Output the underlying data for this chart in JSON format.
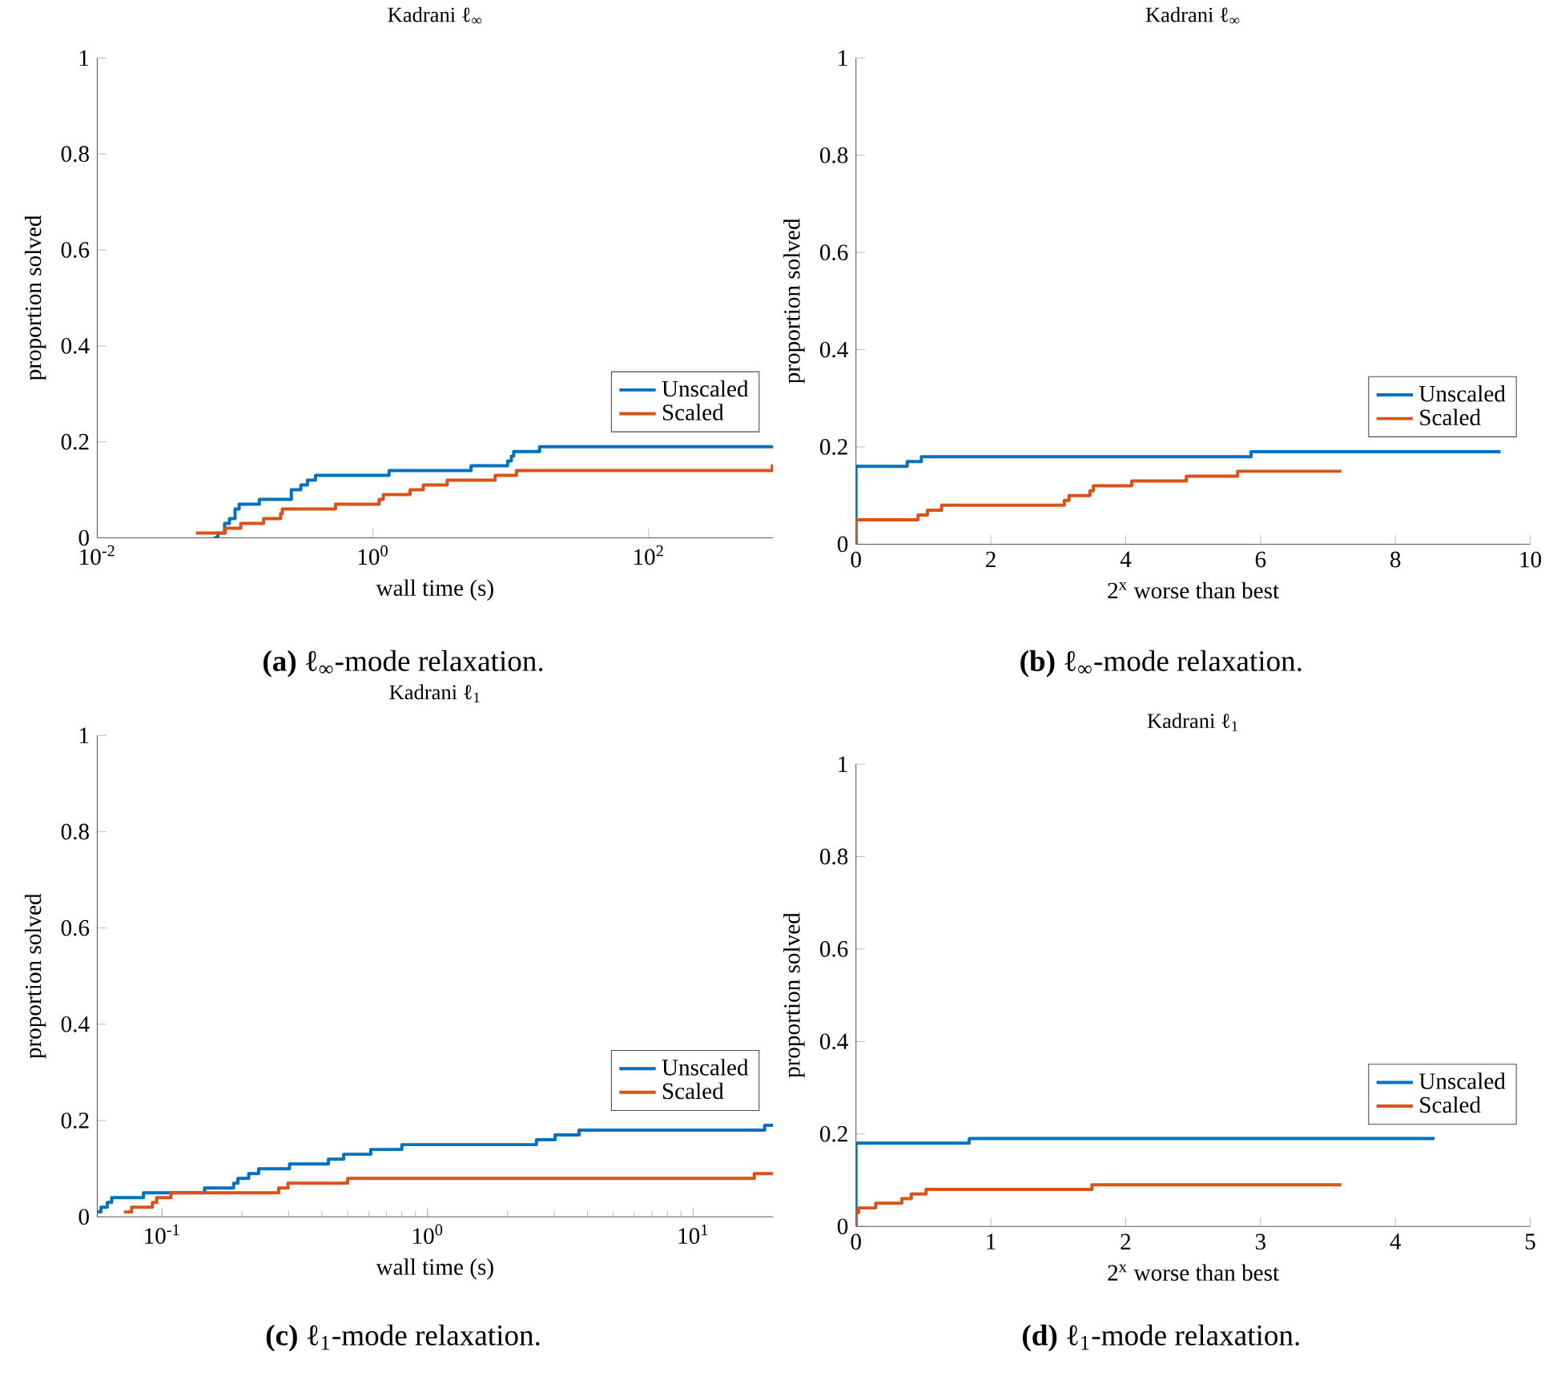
{
  "chart_data": [
    {
      "type": "step",
      "title": "Kadrani ℓ$_{∞}$",
      "xlabel": "wall time (s)",
      "ylabel": "proportion solved",
      "log": "x",
      "legend": "bottom right",
      "xlim": [
        0.01,
        800
      ],
      "ylim": [
        0,
        1
      ],
      "xticks": [
        {
          "value": 0.01,
          "label": "10$^{-2}$"
        },
        {
          "value": 1,
          "label": "10$^{0}$"
        },
        {
          "value": 100,
          "label": "10$^{2}$"
        }
      ],
      "yticks": [
        0,
        0.2,
        0.4,
        0.6,
        0.8,
        1
      ],
      "annotations": [
        "**(a)** ℓ$_{∞}$-mode relaxation."
      ],
      "series": [
        {
          "name": "Unscaled",
          "color": "#0072bd",
          "x": [
            0.07,
            0.075,
            0.084,
            0.091,
            0.1,
            0.107,
            0.15,
            0.256,
            0.3,
            0.335,
            0.383,
            1.31,
            5.15,
            9.5,
            10.1,
            10.5,
            16.2,
            800
          ],
          "values": [
            0,
            0.01,
            0.03,
            0.04,
            0.06,
            0.07,
            0.08,
            0.1,
            0.11,
            0.12,
            0.13,
            0.14,
            0.15,
            0.16,
            0.17,
            0.18,
            0.19,
            0.19
          ]
        },
        {
          "name": "Scaled",
          "color": "#d95319",
          "x": [
            0.052,
            0.085,
            0.11,
            0.161,
            0.214,
            0.22,
            0.535,
            1.11,
            1.19,
            1.86,
            2.32,
            3.46,
            7.71,
            11,
            789,
            800
          ],
          "values": [
            0.01,
            0.02,
            0.03,
            0.04,
            0.05,
            0.06,
            0.07,
            0.08,
            0.09,
            0.1,
            0.11,
            0.12,
            0.13,
            0.14,
            0.15,
            0.15
          ]
        }
      ]
    },
    {
      "type": "step",
      "title": "Kadrani ℓ$_{∞}$",
      "xlabel": "2$^{x}$ worse than best",
      "ylabel": "proportion solved",
      "legend": "bottom right",
      "xlim": [
        0,
        10
      ],
      "ylim": [
        0,
        1
      ],
      "xticks": [
        0,
        2,
        4,
        6,
        8,
        10
      ],
      "yticks": [
        0,
        0.2,
        0.4,
        0.6,
        0.8,
        1
      ],
      "annotations": [
        "**(b)** ℓ$_{∞}$-mode relaxation."
      ],
      "series": [
        {
          "name": "Unscaled",
          "color": "#0072bd",
          "x": [
            0,
            0,
            0.76,
            0.97,
            5.86,
            9.56
          ],
          "values": [
            0,
            0.16,
            0.17,
            0.18,
            0.19,
            0.19
          ]
        },
        {
          "name": "Scaled",
          "color": "#d95319",
          "x": [
            0,
            0,
            0.92,
            1.06,
            1.27,
            3.09,
            3.16,
            3.47,
            3.52,
            4.09,
            4.9,
            5.66,
            7.2
          ],
          "values": [
            0,
            0.05,
            0.06,
            0.07,
            0.08,
            0.09,
            0.1,
            0.11,
            0.12,
            0.13,
            0.14,
            0.15,
            0.15
          ]
        }
      ]
    },
    {
      "type": "step",
      "title": "Kadrani ℓ$_{1}$",
      "xlabel": "wall time (s)",
      "ylabel": "proportion solved",
      "log": "x",
      "legend": "bottom right",
      "xlim": [
        0.057,
        20
      ],
      "ylim": [
        0,
        1
      ],
      "xticks": [
        {
          "value": 0.1,
          "label": "10$^{-1}$"
        },
        {
          "value": 1,
          "label": "10$^{0}$"
        },
        {
          "value": 10,
          "label": "10$^{1}$"
        }
      ],
      "yticks": [
        0,
        0.2,
        0.4,
        0.6,
        0.8,
        1
      ],
      "annotations": [
        "**(c)** ℓ$_{1}$-mode relaxation."
      ],
      "series": [
        {
          "name": "Unscaled",
          "color": "#0072bd",
          "x": [
            0.057,
            0.0589,
            0.0622,
            0.0646,
            0.0851,
            0.1445,
            0.186,
            0.193,
            0.212,
            0.231,
            0.302,
            0.423,
            0.483,
            0.611,
            0.8,
            2.57,
            3.02,
            3.72,
            18.6,
            20
          ],
          "values": [
            0.01,
            0.02,
            0.03,
            0.04,
            0.05,
            0.06,
            0.07,
            0.08,
            0.09,
            0.1,
            0.11,
            0.12,
            0.13,
            0.14,
            0.15,
            0.16,
            0.17,
            0.18,
            0.19,
            0.19
          ]
        },
        {
          "name": "Scaled",
          "color": "#d95319",
          "x": [
            0.0718,
            0.0768,
            0.092,
            0.0955,
            0.108,
            0.275,
            0.298,
            0.5,
            17,
            20
          ],
          "values": [
            0.01,
            0.02,
            0.03,
            0.04,
            0.05,
            0.06,
            0.07,
            0.08,
            0.09,
            0.09
          ]
        }
      ]
    },
    {
      "type": "step",
      "title": "Kadrani ℓ$_{1}$",
      "xlabel": "2$^{x}$ worse than best",
      "ylabel": "proportion solved",
      "legend": "bottom right",
      "xlim": [
        0,
        5
      ],
      "ylim": [
        0,
        1
      ],
      "xticks": [
        0,
        1,
        2,
        3,
        4,
        5
      ],
      "yticks": [
        0,
        0.2,
        0.4,
        0.6,
        0.8,
        1
      ],
      "annotations": [
        "**(d)** ℓ$_{1}$-mode relaxation."
      ],
      "series": [
        {
          "name": "Unscaled",
          "color": "#0072bd",
          "x": [
            0,
            0,
            0.84,
            4.29
          ],
          "values": [
            0,
            0.18,
            0.19,
            0.19
          ]
        },
        {
          "name": "Scaled",
          "color": "#d95319",
          "x": [
            0,
            0,
            0.02,
            0.146,
            0.34,
            0.41,
            0.52,
            1.75,
            3.6
          ],
          "values": [
            0,
            0.03,
            0.04,
            0.05,
            0.06,
            0.07,
            0.08,
            0.09,
            0.09
          ]
        }
      ]
    }
  ]
}
